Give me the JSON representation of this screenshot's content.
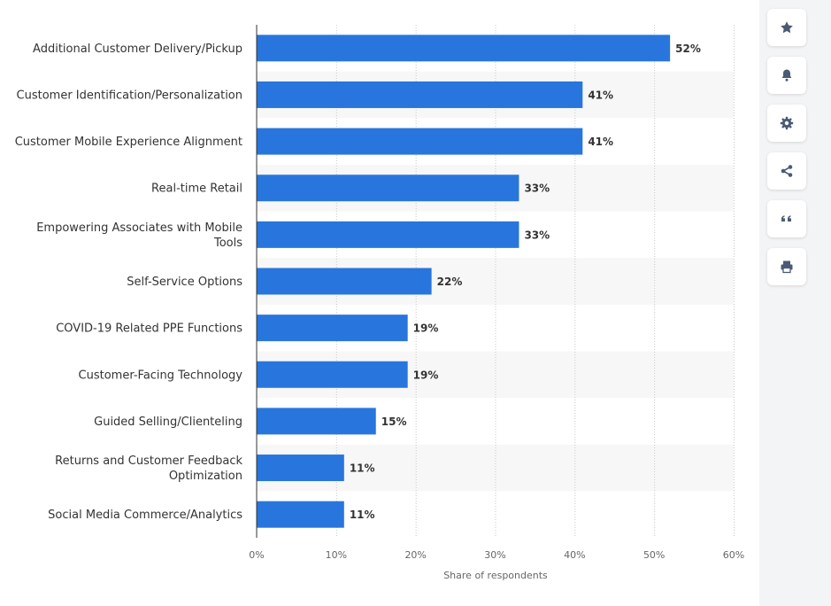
{
  "chart_data": {
    "type": "bar",
    "orientation": "horizontal",
    "categories": [
      "Additional Customer Delivery/Pickup",
      "Customer Identification/Personalization",
      "Customer Mobile Experience Alignment",
      "Real-time Retail",
      "Empowering Associates with Mobile Tools",
      "Self-Service Options",
      "COVID-19 Related PPE Functions",
      "Customer-Facing Technology",
      "Guided Selling/Clienteling",
      "Returns and Customer Feedback Optimization",
      "Social Media Commerce/Analytics"
    ],
    "category_lines": [
      [
        "Additional Customer Delivery/Pickup"
      ],
      [
        "Customer Identification/Personalization"
      ],
      [
        "Customer Mobile Experience Alignment"
      ],
      [
        "Real-time Retail"
      ],
      [
        "Empowering Associates with Mobile",
        "Tools"
      ],
      [
        "Self-Service Options"
      ],
      [
        "COVID-19 Related PPE Functions"
      ],
      [
        "Customer-Facing Technology"
      ],
      [
        "Guided Selling/Clienteling"
      ],
      [
        "Returns and Customer Feedback",
        "Optimization"
      ],
      [
        "Social Media Commerce/Analytics"
      ]
    ],
    "values": [
      52,
      41,
      41,
      33,
      33,
      22,
      19,
      19,
      15,
      11,
      11
    ],
    "value_labels": [
      "52%",
      "41%",
      "41%",
      "33%",
      "33%",
      "22%",
      "19%",
      "19%",
      "15%",
      "11%",
      "11%"
    ],
    "xlim": [
      0,
      60
    ],
    "x_ticks": [
      0,
      10,
      20,
      30,
      40,
      50,
      60
    ],
    "x_tick_labels": [
      "0%",
      "10%",
      "20%",
      "30%",
      "40%",
      "50%",
      "60%"
    ],
    "xlabel": "Share of respondents",
    "ylabel": "",
    "title": "",
    "grid": true,
    "bar_color": "#2876dd"
  },
  "toolbar": {
    "buttons": [
      {
        "name": "favorite-button",
        "icon": "star-icon"
      },
      {
        "name": "notification-button",
        "icon": "bell-icon"
      },
      {
        "name": "settings-button",
        "icon": "gear-icon"
      },
      {
        "name": "share-button",
        "icon": "share-icon"
      },
      {
        "name": "cite-button",
        "icon": "quote-icon"
      },
      {
        "name": "print-button",
        "icon": "printer-icon"
      }
    ]
  },
  "colors": {
    "accent": "#2876dd",
    "icon": "#4a5a74",
    "band": "#f7f7f7"
  }
}
